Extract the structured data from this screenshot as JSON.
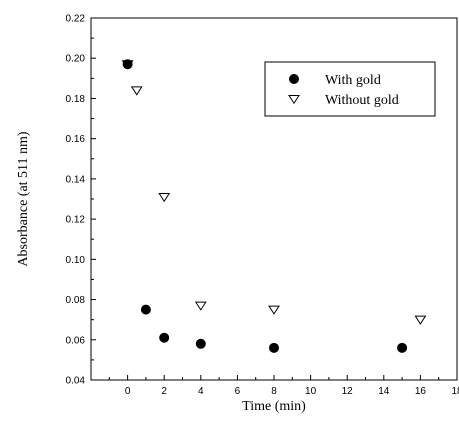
{
  "chart_data": {
    "type": "scatter",
    "xlabel": "Time (min)",
    "ylabel": "Absorbance (at 511 nm)",
    "xlim": [
      -2,
      18
    ],
    "ylim": [
      0.04,
      0.22
    ],
    "x_ticks": [
      0,
      2,
      4,
      6,
      8,
      10,
      12,
      14,
      16,
      18
    ],
    "y_ticks": [
      0.04,
      0.06,
      0.08,
      0.1,
      0.12,
      0.14,
      0.16,
      0.18,
      0.2,
      0.22
    ],
    "x_tick_labels": [
      "0",
      "2",
      "4",
      "6",
      "8",
      "10",
      "12",
      "14",
      "16",
      "18"
    ],
    "y_tick_labels": [
      "0.04",
      "0.06",
      "0.08",
      "0.10",
      "0.12",
      "0.14",
      "0.16",
      "0.18",
      "0.20",
      "0.22"
    ],
    "grid": false,
    "legend_position": "top-right",
    "series": [
      {
        "name": "With gold",
        "marker": "filled-circle",
        "color": "#000000",
        "x": [
          0,
          1,
          2,
          4,
          8,
          15
        ],
        "y": [
          0.197,
          0.075,
          0.061,
          0.058,
          0.056,
          0.056
        ]
      },
      {
        "name": "Without gold",
        "marker": "open-triangle-down",
        "color": "#000000",
        "x": [
          0,
          0.5,
          2,
          4,
          8,
          16
        ],
        "y": [
          0.197,
          0.184,
          0.131,
          0.077,
          0.075,
          0.07
        ]
      }
    ]
  }
}
